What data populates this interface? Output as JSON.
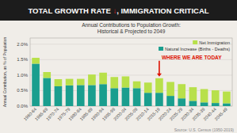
{
  "chart_data": {
    "type": "bar",
    "title": "TOTAL GROWTH RATE ↓, IMMIGRATION CRITICAL",
    "subtitle": [
      "Annual Contributions to Population Growth:",
      "Historical & Projected to 2049"
    ],
    "ylabel": "Annual Contribution, as % of Population",
    "source": "Source: U.S. Census (1950-2019)",
    "categories": [
      "1960-64",
      "1965-69",
      "1970-74",
      "1975-79",
      "1980-84",
      "1985-89",
      "1990-94",
      "1995-99",
      "2000-04",
      "2005-09",
      "2010-14",
      "2015-19",
      "2020-24",
      "2025-29",
      "2030-34",
      "2035-39",
      "2040-44",
      "2045-49"
    ],
    "series": [
      {
        "name": "Natural Increase (Births - Deaths)",
        "color": "#1a9e8e",
        "values": [
          0.0137,
          0.0091,
          0.0064,
          0.0067,
          0.0068,
          0.0068,
          0.0071,
          0.0058,
          0.006,
          0.0058,
          0.0043,
          0.0043,
          0.0033,
          0.0025,
          0.0017,
          0.0012,
          0.001,
          0.0009
        ]
      },
      {
        "name": "Net Immigration",
        "color": "#b8e04a",
        "values": [
          0.0019,
          0.0019,
          0.0023,
          0.0021,
          0.002,
          0.0034,
          0.0037,
          0.0036,
          0.0036,
          0.0022,
          0.0033,
          0.0047,
          0.0045,
          0.0046,
          0.0044,
          0.0043,
          0.0041,
          0.0038
        ]
      }
    ],
    "stacked": true,
    "ylim": [
      0,
      0.022
    ],
    "yticks": [
      {
        "value": 0.0,
        "label": "0.0%"
      },
      {
        "value": 0.005,
        "label": "0.5%"
      },
      {
        "value": 0.01,
        "label": "1.0%"
      },
      {
        "value": 0.015,
        "label": "1.5%"
      },
      {
        "value": 0.02,
        "label": "2.0%"
      }
    ],
    "grid": true,
    "legend": "upper right",
    "annotations": [
      {
        "text": "WHERE WE ARE TODAY",
        "x": "2015-19"
      }
    ]
  }
}
